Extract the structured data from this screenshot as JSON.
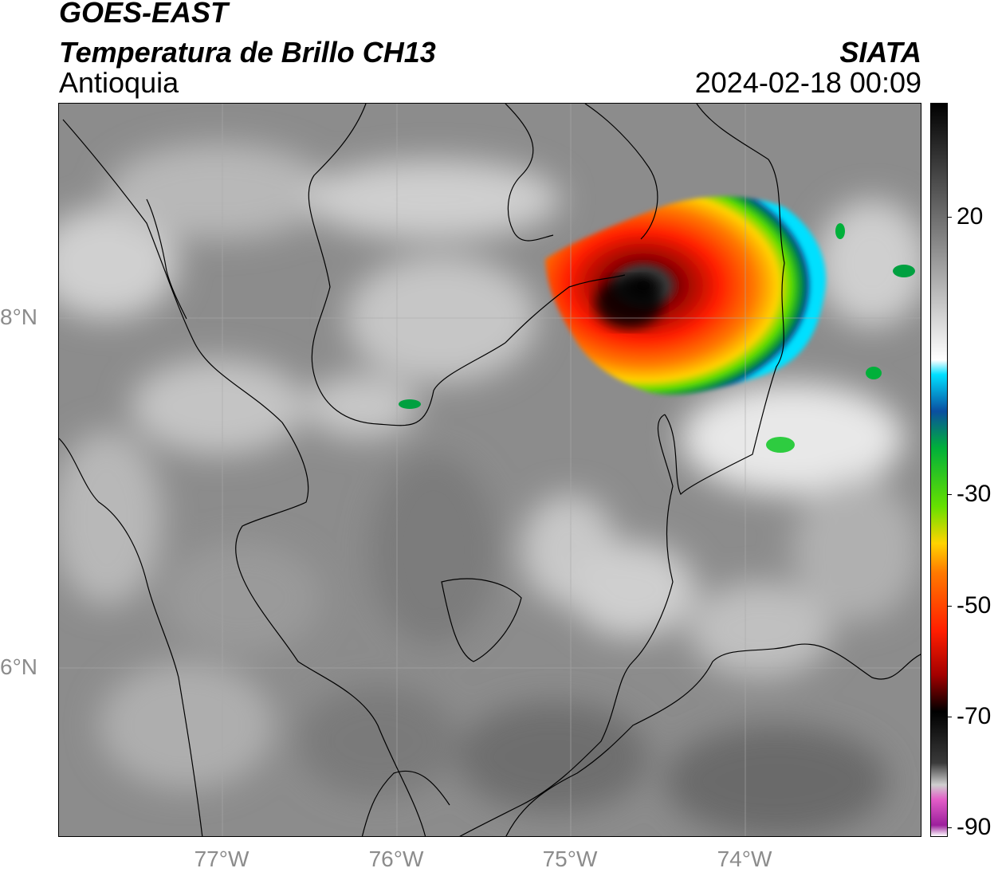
{
  "header": {
    "line1": "GOES-EAST",
    "line2": "Temperatura de Brillo CH13",
    "line3": "Antioquia",
    "brand": "SIATA",
    "timestamp": "2024-02-18 00:09"
  },
  "map": {
    "lat_labels": [
      "8°N",
      "6°N"
    ],
    "lon_labels": [
      "77°W",
      "76°W",
      "75°W",
      "74°W"
    ]
  },
  "colorbar": {
    "ticks": [
      "20",
      "-30",
      "-50",
      "-70",
      "-90"
    ],
    "colors": [
      "#ffffff",
      "#9c1f9c",
      "#e35ec8",
      "#cfcfcf",
      "#3a3a3a",
      "#000000",
      "#a30000",
      "#ff1e00",
      "#ff7a00",
      "#ffd400",
      "#66e000",
      "#00b03a",
      "#0a4fa0",
      "#00e0ff",
      "#ffffff",
      "#808080",
      "#000000"
    ]
  }
}
